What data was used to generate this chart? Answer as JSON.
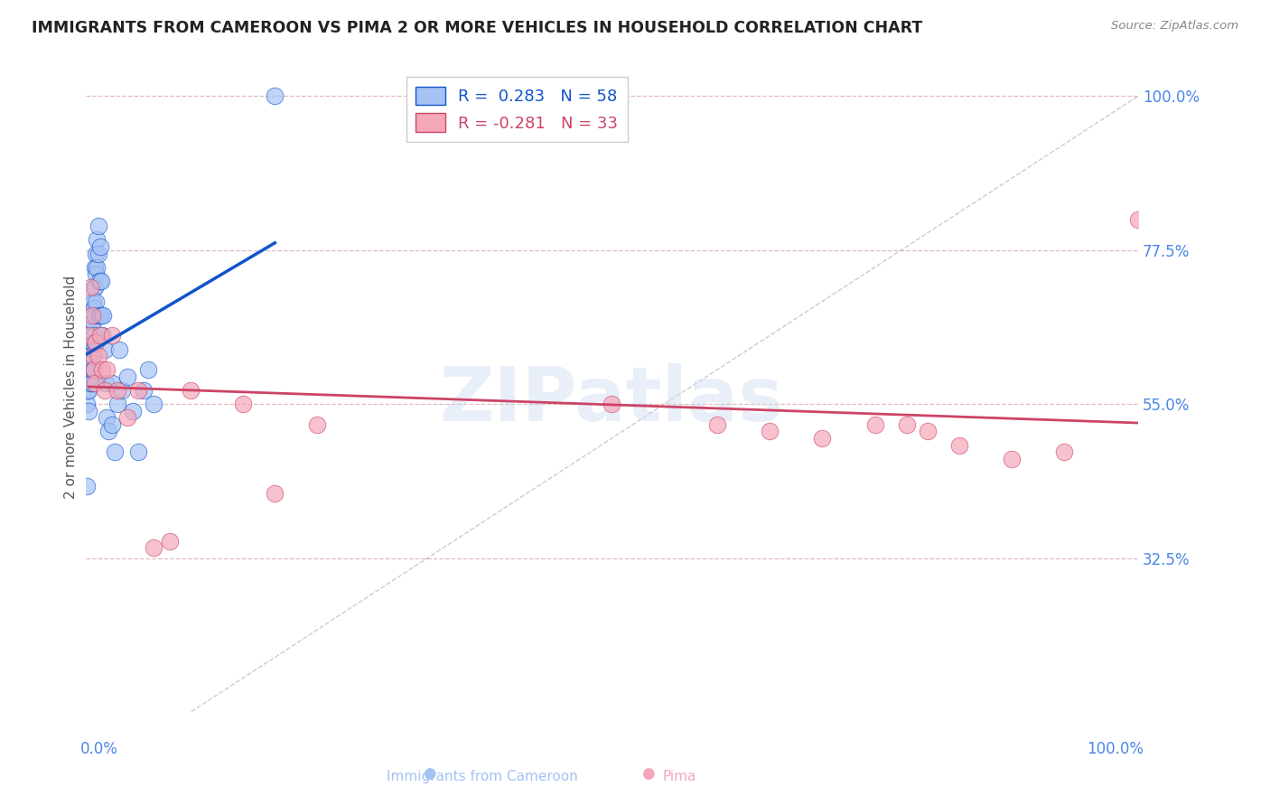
{
  "title": "IMMIGRANTS FROM CAMEROON VS PIMA 2 OR MORE VEHICLES IN HOUSEHOLD CORRELATION CHART",
  "source": "Source: ZipAtlas.com",
  "ylabel": "2 or more Vehicles in Household",
  "ytick_labels": [
    "100.0%",
    "77.5%",
    "55.0%",
    "32.5%"
  ],
  "ytick_values": [
    1.0,
    0.775,
    0.55,
    0.325
  ],
  "blue_color": "#a4c2f4",
  "pink_color": "#f4a7b9",
  "blue_line_color": "#1155cc",
  "pink_line_color": "#cc4466",
  "blue_R": 0.283,
  "blue_N": 58,
  "pink_R": -0.281,
  "pink_N": 33,
  "xlim": [
    0.0,
    1.0
  ],
  "ylim": [
    0.1,
    1.05
  ],
  "blue_points_x": [
    0.001,
    0.001,
    0.002,
    0.002,
    0.003,
    0.003,
    0.003,
    0.004,
    0.004,
    0.005,
    0.005,
    0.005,
    0.006,
    0.006,
    0.006,
    0.006,
    0.007,
    0.007,
    0.007,
    0.007,
    0.008,
    0.008,
    0.008,
    0.009,
    0.009,
    0.009,
    0.009,
    0.01,
    0.01,
    0.01,
    0.011,
    0.011,
    0.012,
    0.012,
    0.013,
    0.013,
    0.014,
    0.015,
    0.015,
    0.016,
    0.017,
    0.018,
    0.019,
    0.02,
    0.022,
    0.025,
    0.025,
    0.028,
    0.03,
    0.032,
    0.035,
    0.04,
    0.045,
    0.05,
    0.055,
    0.06,
    0.065,
    0.18
  ],
  "blue_points_y": [
    0.55,
    0.43,
    0.57,
    0.6,
    0.6,
    0.57,
    0.54,
    0.62,
    0.59,
    0.65,
    0.62,
    0.58,
    0.67,
    0.64,
    0.61,
    0.58,
    0.7,
    0.67,
    0.64,
    0.6,
    0.72,
    0.69,
    0.65,
    0.75,
    0.72,
    0.68,
    0.64,
    0.77,
    0.74,
    0.7,
    0.79,
    0.75,
    0.81,
    0.77,
    0.73,
    0.68,
    0.78,
    0.73,
    0.68,
    0.65,
    0.68,
    0.63,
    0.58,
    0.53,
    0.51,
    0.58,
    0.52,
    0.48,
    0.55,
    0.63,
    0.57,
    0.59,
    0.54,
    0.48,
    0.57,
    0.6,
    0.55,
    1.0
  ],
  "pink_points_x": [
    0.003,
    0.005,
    0.006,
    0.007,
    0.008,
    0.009,
    0.01,
    0.012,
    0.014,
    0.016,
    0.018,
    0.02,
    0.025,
    0.03,
    0.04,
    0.05,
    0.065,
    0.08,
    0.1,
    0.15,
    0.18,
    0.22,
    0.5,
    0.6,
    0.65,
    0.7,
    0.75,
    0.78,
    0.8,
    0.83,
    0.88,
    0.93,
    1.0
  ],
  "pink_points_y": [
    0.65,
    0.72,
    0.68,
    0.62,
    0.6,
    0.58,
    0.64,
    0.62,
    0.65,
    0.6,
    0.57,
    0.6,
    0.65,
    0.57,
    0.53,
    0.57,
    0.34,
    0.35,
    0.57,
    0.55,
    0.42,
    0.52,
    0.55,
    0.52,
    0.51,
    0.5,
    0.52,
    0.52,
    0.51,
    0.49,
    0.47,
    0.48,
    0.82
  ],
  "grid_color": "#ddaaaa",
  "diag_color": "#aaaaaa",
  "watermark_color": "#c8d8f0",
  "watermark_text": "ZIPatlas"
}
